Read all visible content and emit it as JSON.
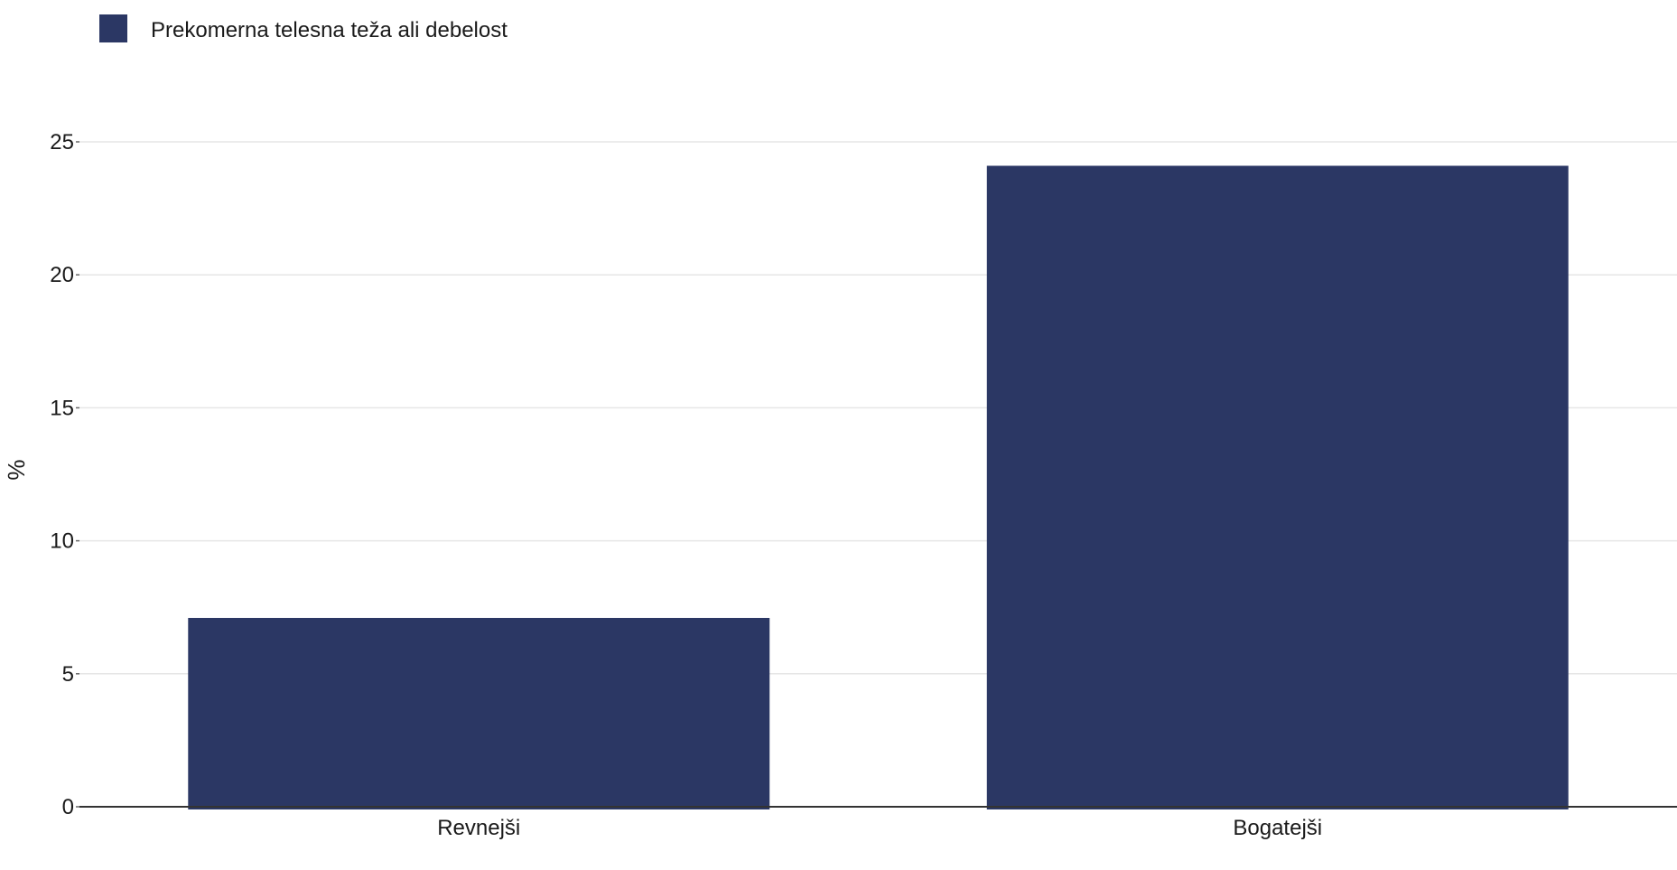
{
  "chart_data": {
    "type": "bar",
    "categories": [
      "Revnejši",
      "Bogatejši"
    ],
    "series": [
      {
        "name": "Prekomerna telesna teža ali debelost",
        "values": [
          7.1,
          24.1
        ]
      }
    ],
    "title": "",
    "xlabel": "",
    "ylabel": "%",
    "ylim": [
      0,
      25
    ],
    "yticks": [
      0,
      5,
      10,
      15,
      20,
      25
    ],
    "grid": "horizontal",
    "legend_position": "top-left",
    "colors": {
      "bar": "#2b3764",
      "grid": "#e6e6e6",
      "axis": "#333333"
    }
  }
}
